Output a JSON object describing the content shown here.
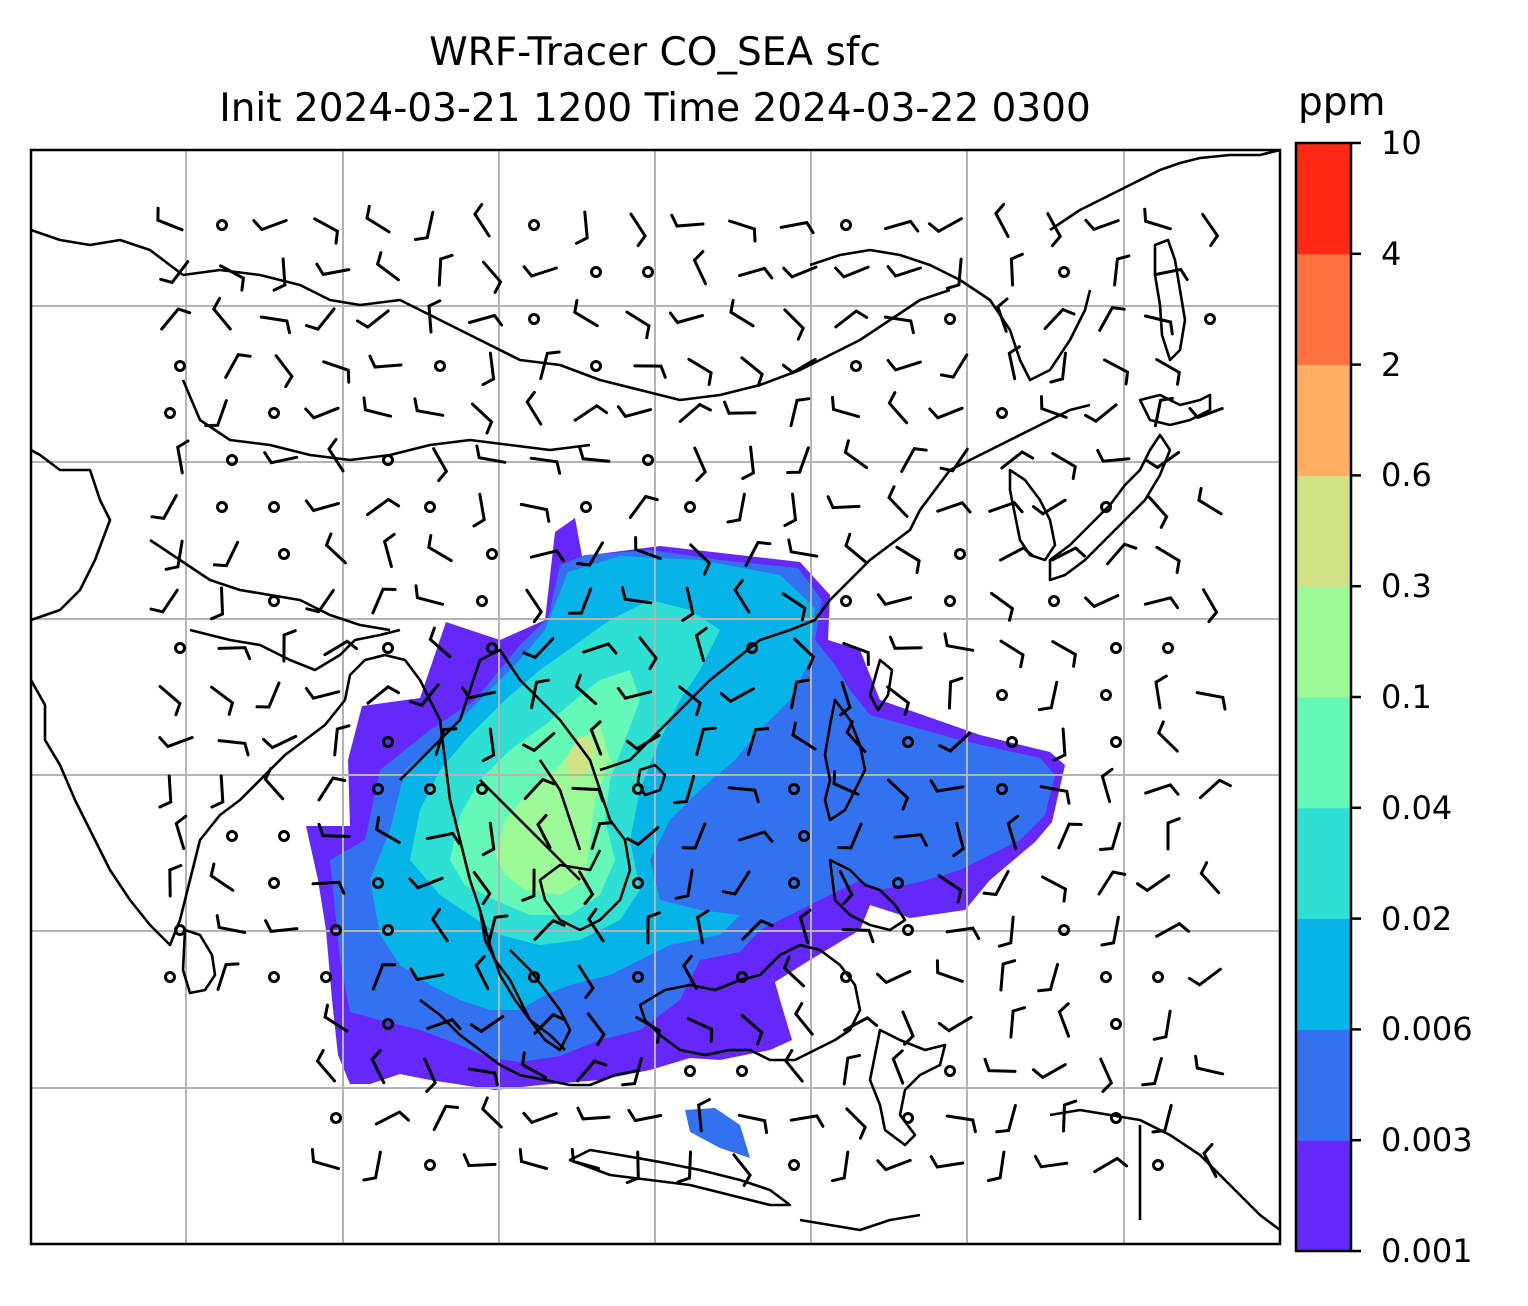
{
  "title": {
    "line1": "WRF-Tracer CO_SEA sfc",
    "line2": "Init 2024-03-21 1200 Time 2024-03-22 0300"
  },
  "colorbar": {
    "unit": "ppm",
    "levels": [
      "0.001",
      "0.003",
      "0.006",
      "0.02",
      "0.04",
      "0.1",
      "0.3",
      "0.6",
      "2",
      "4",
      "10"
    ],
    "colors": [
      "#6428fa",
      "#3272f0",
      "#06b4e8",
      "#2edfd4",
      "#64f9b8",
      "#9cfa98",
      "#d0e284",
      "#ffb060",
      "#ff723e",
      "#ff2814"
    ]
  },
  "map": {
    "gridlines": true,
    "field": "CO tracer concentration (surface)",
    "overlay": "wind barbs",
    "colors": {
      "coastline": "#000000",
      "grid": "#b4b4b4",
      "frame": "#000000"
    }
  }
}
